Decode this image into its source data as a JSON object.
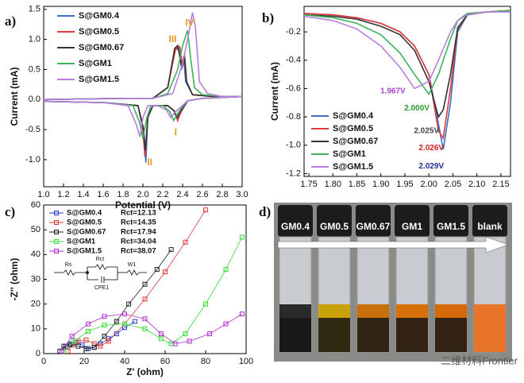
{
  "chart_data": [
    {
      "type": "line",
      "xlabel": "Potential (V)",
      "ylabel": "Current (mA)",
      "panel": "a)",
      "xlim": [
        1.0,
        3.0
      ],
      "ylim": [
        -1.45,
        1.55
      ],
      "xticks": [
        {
          "value": 1.0,
          "label": "1.0"
        },
        1.2,
        1.4,
        1.6,
        1.8,
        {
          "value": 2.0,
          "label": "2.0"
        },
        2.2,
        2.4,
        2.6,
        2.8,
        {
          "value": 3.0,
          "label": "3.0"
        }
      ],
      "yticks": [
        {
          "value": -1.0,
          "label": "-1.0"
        },
        -0.5,
        {
          "value": 0.0,
          "label": "0.0"
        },
        0.5,
        {
          "value": 1.0,
          "label": "1.0"
        },
        1.5
      ],
      "legend": "upper left",
      "series": [
        {
          "name": "S@GM0.4",
          "color": "#3a6fc4",
          "x": [
            1.0,
            1.8,
            2.1,
            2.25,
            2.32,
            2.36,
            2.39,
            2.41,
            2.43,
            2.5,
            2.7,
            3.0,
            2.6,
            2.45,
            2.38,
            2.35,
            2.32,
            2.25,
            2.1,
            2.05,
            2.03,
            2.01,
            1.95,
            1.6,
            1.0
          ],
          "values": [
            0,
            0.02,
            0.02,
            0.2,
            0.82,
            0.85,
            0.5,
            0.72,
            0.3,
            0.08,
            0.05,
            0.05,
            0.02,
            -0.02,
            -0.2,
            -0.33,
            -0.2,
            -0.1,
            -0.1,
            -0.3,
            -1.05,
            -0.5,
            -0.1,
            -0.05,
            -0.03
          ]
        },
        {
          "name": "S@GM0.5",
          "color": "#e03a3a",
          "x": [
            1.0,
            1.8,
            2.1,
            2.25,
            2.33,
            2.37,
            2.4,
            2.42,
            2.44,
            2.5,
            2.7,
            3.0,
            2.6,
            2.45,
            2.38,
            2.35,
            2.32,
            2.25,
            2.1,
            2.05,
            2.02,
            2.0,
            1.95,
            1.6,
            1.0
          ],
          "values": [
            0,
            0.02,
            0.02,
            0.2,
            0.85,
            0.88,
            0.55,
            0.75,
            0.3,
            0.08,
            0.05,
            0.05,
            0.02,
            -0.02,
            -0.22,
            -0.35,
            -0.2,
            -0.1,
            -0.1,
            -0.3,
            -0.95,
            -0.5,
            -0.1,
            -0.05,
            -0.03
          ]
        },
        {
          "name": "S@GM0.67",
          "color": "#333333",
          "x": [
            1.0,
            1.8,
            2.1,
            2.25,
            2.32,
            2.35,
            2.39,
            2.42,
            2.44,
            2.5,
            2.7,
            3.0,
            2.6,
            2.45,
            2.38,
            2.34,
            2.31,
            2.25,
            2.1,
            2.05,
            2.025,
            2.0,
            1.95,
            1.6,
            1.0
          ],
          "values": [
            0,
            0.02,
            0.02,
            0.2,
            0.85,
            0.9,
            0.55,
            0.7,
            0.3,
            0.08,
            0.05,
            0.05,
            0.02,
            -0.02,
            -0.2,
            -0.3,
            -0.18,
            -0.1,
            -0.1,
            -0.3,
            -0.85,
            -0.45,
            -0.1,
            -0.05,
            -0.03
          ]
        },
        {
          "name": "S@GM1",
          "color": "#3cb35a",
          "x": [
            1.0,
            1.8,
            2.1,
            2.25,
            2.35,
            2.4,
            2.45,
            2.48,
            2.52,
            2.6,
            2.8,
            3.0,
            2.6,
            2.45,
            2.36,
            2.31,
            2.27,
            2.2,
            2.08,
            2.04,
            2.0,
            1.97,
            1.9,
            1.6,
            1.0
          ],
          "values": [
            0,
            0.02,
            0.02,
            0.1,
            0.5,
            0.9,
            1.15,
            0.7,
            0.2,
            0.08,
            0.05,
            0.05,
            0.02,
            -0.02,
            -0.2,
            -0.35,
            -0.2,
            -0.1,
            -0.1,
            -0.3,
            -0.65,
            -0.4,
            -0.1,
            -0.05,
            -0.03
          ]
        },
        {
          "name": "S@GM1.5",
          "color": "#b77ee0",
          "x": [
            1.0,
            1.8,
            2.1,
            2.3,
            2.4,
            2.45,
            2.5,
            2.53,
            2.57,
            2.65,
            2.8,
            3.0,
            2.6,
            2.45,
            2.33,
            2.28,
            2.24,
            2.15,
            2.05,
            2.0,
            1.97,
            1.93,
            1.85,
            1.6,
            1.0
          ],
          "values": [
            0,
            0.02,
            0.02,
            0.1,
            0.6,
            1.0,
            1.45,
            1.2,
            0.3,
            0.1,
            0.05,
            0.05,
            0.02,
            -0.02,
            -0.2,
            -0.3,
            -0.18,
            -0.1,
            -0.1,
            -0.3,
            -0.62,
            -0.4,
            -0.1,
            -0.05,
            -0.03
          ]
        }
      ],
      "annotations": [
        {
          "text": "I",
          "x": 2.33,
          "y": -0.55,
          "color": "#e69a1e"
        },
        {
          "text": "II",
          "x": 2.07,
          "y": -1.05,
          "color": "#e69a1e"
        },
        {
          "text": "III",
          "x": 2.3,
          "y": 1.0,
          "color": "#e69a1e"
        },
        {
          "text": "IV",
          "x": 2.47,
          "y": 1.27,
          "color": "#e69a1e"
        }
      ]
    },
    {
      "type": "line",
      "ylabel": "Current (mA)",
      "panel": "b)",
      "xlim": [
        1.74,
        2.17
      ],
      "ylim": [
        -1.22,
        -0.02
      ],
      "xticks": [
        1.75,
        {
          "value": 1.8,
          "label": "1.80"
        },
        1.85,
        {
          "value": 1.9,
          "label": "1.90"
        },
        1.95,
        {
          "value": 2.0,
          "label": "2.00"
        },
        2.05,
        {
          "value": 2.1,
          "label": "2.10"
        },
        2.15
      ],
      "yticks": [
        -0.2,
        -0.4,
        -0.6,
        -0.8,
        {
          "value": -1.0,
          "label": "-1.0"
        },
        -1.2
      ],
      "legend": "lower left",
      "x": [
        1.74,
        1.8,
        1.85,
        1.9,
        1.94,
        1.97,
        2.0,
        2.02,
        2.03,
        2.045,
        2.06,
        2.08,
        2.12,
        2.17
      ],
      "series": [
        {
          "name": "S@GM0.4",
          "color": "#3a6fc4",
          "values": [
            -0.07,
            -0.08,
            -0.1,
            -0.14,
            -0.2,
            -0.3,
            -0.5,
            -0.85,
            -1.03,
            -0.7,
            -0.2,
            -0.08,
            -0.06,
            -0.05
          ]
        },
        {
          "name": "S@GM0.5",
          "color": "#e03a3a",
          "values": [
            -0.07,
            -0.08,
            -0.1,
            -0.14,
            -0.2,
            -0.3,
            -0.5,
            -0.9,
            -0.95,
            -0.6,
            -0.18,
            -0.08,
            -0.06,
            -0.05
          ]
        },
        {
          "name": "S@GM0.67",
          "color": "#333333",
          "values": [
            -0.08,
            -0.09,
            -0.11,
            -0.16,
            -0.22,
            -0.33,
            -0.55,
            -0.8,
            -0.75,
            -0.5,
            -0.17,
            -0.08,
            -0.06,
            -0.05
          ]
        },
        {
          "name": "S@GM1",
          "color": "#3cb35a",
          "values": [
            -0.08,
            -0.1,
            -0.14,
            -0.22,
            -0.35,
            -0.5,
            -0.64,
            -0.5,
            -0.4,
            -0.25,
            -0.12,
            -0.07,
            -0.06,
            -0.05
          ]
        },
        {
          "name": "S@GM1.5",
          "color": "#b77ee0",
          "values": [
            -0.09,
            -0.12,
            -0.18,
            -0.3,
            -0.45,
            -0.6,
            -0.55,
            -0.4,
            -0.32,
            -0.2,
            -0.12,
            -0.08,
            -0.06,
            -0.06
          ]
        }
      ],
      "annotations": [
        {
          "text": "1.967V",
          "x": 1.925,
          "y": -0.62,
          "color": "#b040d0"
        },
        {
          "text": "2.000V",
          "x": 1.975,
          "y": -0.74,
          "color": "#2a9a30"
        },
        {
          "text": "2.025V",
          "x": 1.995,
          "y": -0.9,
          "color": "#444444"
        },
        {
          "text": "2.026V",
          "x": 2.005,
          "y": -1.02,
          "color": "#d02020"
        },
        {
          "text": "2.029V",
          "x": 2.005,
          "y": -1.15,
          "color": "#1f2a9a"
        }
      ]
    },
    {
      "type": "scatter",
      "xlabel": "Z' (ohm)",
      "ylabel": "-Z'' (ohm)",
      "panel": "c)",
      "xlim": [
        0,
        100
      ],
      "ylim": [
        0,
        60
      ],
      "xticks": [
        0,
        20,
        40,
        60,
        80,
        100
      ],
      "yticks": [
        0,
        10,
        20,
        30,
        40,
        50,
        60
      ],
      "legend": "upper left",
      "circuit": [
        "Rs",
        "Rct",
        "W1",
        "CPE1"
      ],
      "series": [
        {
          "name": "S@GM0.4",
          "rct_label": "Rct=12.13",
          "color": "#2a3ad0",
          "x": [
            9,
            11,
            13,
            16,
            19,
            22,
            25,
            28,
            32,
            36,
            40,
            45
          ],
          "values": [
            1,
            3,
            4,
            4.5,
            3.5,
            2,
            2.5,
            4,
            6,
            8,
            10.5,
            13
          ]
        },
        {
          "name": "S@GM0.5",
          "rct_label": "Rct=14.35",
          "color": "#e03a3a",
          "x": [
            12,
            14,
            17,
            21,
            25,
            28,
            32,
            40,
            50,
            60,
            70,
            80
          ],
          "values": [
            1,
            3.5,
            5,
            5.5,
            4,
            3,
            5,
            12,
            22,
            33,
            45,
            58
          ]
        },
        {
          "name": "S@GM0.67",
          "rct_label": "Rct=17.94",
          "color": "#222222",
          "x": [
            8,
            10,
            13,
            17,
            21,
            25,
            30,
            36,
            42,
            50,
            56,
            63
          ],
          "values": [
            1,
            3,
            3.5,
            3,
            2,
            2.5,
            7,
            13,
            20,
            28,
            34,
            42
          ]
        },
        {
          "name": "S@GM1",
          "rct_label": "Rct=34.04",
          "color": "#33dd33",
          "x": [
            10,
            15,
            22,
            30,
            40,
            50,
            58,
            63,
            70,
            80,
            90,
            98
          ],
          "values": [
            1,
            5,
            9,
            11.5,
            12,
            10,
            6,
            4,
            8,
            20,
            34,
            47
          ]
        },
        {
          "name": "S@GM1.5",
          "rct_label": "Rct=38.07",
          "color": "#b030d0",
          "x": [
            9,
            14,
            22,
            30,
            40,
            50,
            58,
            65,
            72,
            82,
            90,
            98
          ],
          "values": [
            1,
            7,
            12,
            15,
            16,
            14,
            8,
            4,
            5,
            8,
            12,
            16
          ]
        }
      ]
    }
  ],
  "photo": {
    "panel": "d)",
    "labels": [
      "GM0.4",
      "GM0.5",
      "GM0.67",
      "GM1",
      "GM1.5",
      "blank"
    ]
  },
  "watermark": "二维材料Frontier"
}
